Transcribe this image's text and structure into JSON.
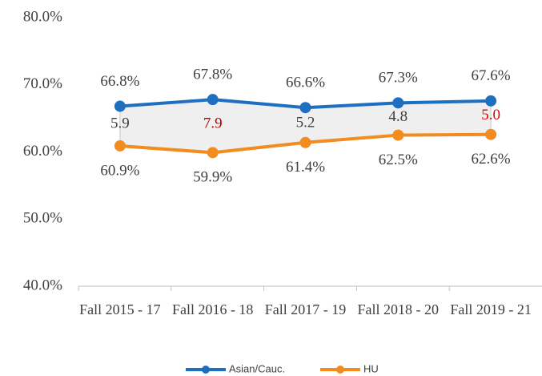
{
  "chart_data": {
    "type": "line",
    "categories": [
      "Fall 2015 - 17",
      "Fall 2016 - 18",
      "Fall 2017 - 19",
      "Fall 2018 - 20",
      "Fall 2019 - 21"
    ],
    "series": [
      {
        "name": "Asian/Cauc.",
        "color": "#1f6fc0",
        "values": [
          66.8,
          67.8,
          66.6,
          67.3,
          67.6
        ],
        "value_labels": [
          "66.8%",
          "67.8%",
          "66.6%",
          "67.3%",
          "67.6%"
        ]
      },
      {
        "name": "HU",
        "color": "#f28c1e",
        "values": [
          60.9,
          59.9,
          61.4,
          62.5,
          62.6
        ],
        "value_labels": [
          "60.9%",
          "59.9%",
          "61.4%",
          "62.5%",
          "62.6%"
        ]
      }
    ],
    "gap": {
      "values": [
        5.9,
        7.9,
        5.2,
        4.8,
        5.0
      ],
      "value_labels": [
        "5.9",
        "7.9",
        "5.2",
        "4.8",
        "5.0"
      ],
      "colors": [
        "#404040",
        "#c00000",
        "#404040",
        "#404040",
        "#e00000"
      ]
    },
    "ylim": [
      40,
      80
    ],
    "yticks": [
      {
        "value": 40,
        "label": "40.0%"
      },
      {
        "value": 50,
        "label": "50.0%"
      },
      {
        "value": 60,
        "label": "60.0%"
      },
      {
        "value": 70,
        "label": "70.0%"
      },
      {
        "value": 80,
        "label": "80.0%"
      }
    ],
    "grid": false
  }
}
